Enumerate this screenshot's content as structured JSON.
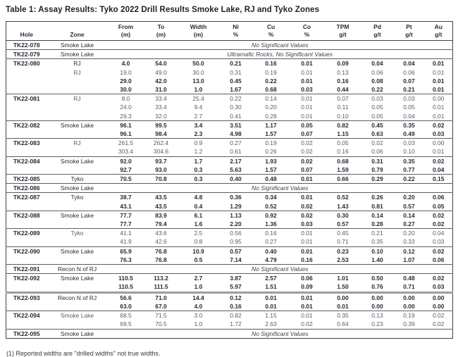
{
  "title": "Table 1: Assay Results: Tyko 2022 Drill Results Smoke Lake, RJ and Tyko Zones",
  "footnote": "(1) Reported widths are \"drilled widths\" not true widths.",
  "table": {
    "columns": [
      {
        "label": "Hole",
        "unit": ""
      },
      {
        "label": "Zone",
        "unit": ""
      },
      {
        "label": "From",
        "unit": "(m)"
      },
      {
        "label": "To",
        "unit": "(m)"
      },
      {
        "label": "Width",
        "unit": "(m)"
      },
      {
        "label": "Ni",
        "unit": "%"
      },
      {
        "label": "Cu",
        "unit": "%"
      },
      {
        "label": "Co",
        "unit": "%"
      },
      {
        "label": "TPM",
        "unit": "g/t"
      },
      {
        "label": "Pd",
        "unit": "g/t"
      },
      {
        "label": "Pt",
        "unit": "g/t"
      },
      {
        "label": "Au",
        "unit": "g/t"
      }
    ],
    "groups": [
      {
        "hole": "TK22-078",
        "zone": "Smoke Lake",
        "note": "No Significant Values"
      },
      {
        "hole": "TK22-079",
        "zone": "Smoke Lake",
        "note": "Ultramafic Rocks, No Significant Values"
      },
      {
        "hole": "TK22-080",
        "rows": [
          {
            "zone": "RJ",
            "values": [
              "4.0",
              "54.0",
              "50.0",
              "0.21",
              "0.16",
              "0.01",
              "0.09",
              "0.04",
              "0.04",
              "0.01"
            ],
            "bold": true
          },
          {
            "zone": "RJ",
            "values": [
              "19.0",
              "49.0",
              "30.0",
              "0.31",
              "0.19",
              "0.01",
              "0.13",
              "0.06",
              "0.06",
              "0.01"
            ],
            "bold": false
          },
          {
            "zone": "",
            "values": [
              "29.0",
              "42.0",
              "13.0",
              "0.45",
              "0.22",
              "0.01",
              "0.16",
              "0.08",
              "0.07",
              "0.01"
            ],
            "bold": true
          },
          {
            "zone": "",
            "values": [
              "30.0",
              "31.0",
              "1.0",
              "1.67",
              "0.68",
              "0.03",
              "0.44",
              "0.22",
              "0.21",
              "0.01"
            ],
            "bold": true
          }
        ]
      },
      {
        "hole": "TK22-081",
        "rows": [
          {
            "zone": "RJ",
            "values": [
              "8.0",
              "33.4",
              "25.4",
              "0.22",
              "0.14",
              "0.01",
              "0.07",
              "0.03",
              "0.03",
              "0.00"
            ],
            "bold": false
          },
          {
            "zone": "",
            "values": [
              "24.0",
              "33.4",
              "9.4",
              "0.30",
              "0.20",
              "0.01",
              "0.11",
              "0.05",
              "0.05",
              "0.01"
            ],
            "bold": false
          },
          {
            "zone": "",
            "values": [
              "29.3",
              "32.0",
              "2.7",
              "0.41",
              "0.28",
              "0.01",
              "0.10",
              "0.05",
              "0.04",
              "0.01"
            ],
            "bold": false
          }
        ]
      },
      {
        "hole": "TK22-082",
        "rows": [
          {
            "zone": "Smoke Lake",
            "values": [
              "96.1",
              "99.5",
              "3.4",
              "3.51",
              "1.17",
              "0.05",
              "0.82",
              "0.45",
              "0.35",
              "0.02"
            ],
            "bold": true
          },
          {
            "zone": "",
            "values": [
              "96.1",
              "98.4",
              "2.3",
              "4.98",
              "1.57",
              "0.07",
              "1.15",
              "0.63",
              "0.49",
              "0.03"
            ],
            "bold": true
          }
        ]
      },
      {
        "hole": "TK22-083",
        "rows": [
          {
            "zone": "RJ",
            "values": [
              "261.5",
              "262.4",
              "0.9",
              "0.27",
              "0.19",
              "0.02",
              "0.05",
              "0.02",
              "0.03",
              "0.00"
            ],
            "bold": false
          },
          {
            "zone": "",
            "values": [
              "303.4",
              "304.6",
              "1.2",
              "0.61",
              "0.26",
              "0.02",
              "0.16",
              "0.06",
              "0.10",
              "0.01"
            ],
            "bold": false
          }
        ]
      },
      {
        "hole": "TK22-084",
        "rows": [
          {
            "zone": "Smoke Lake",
            "values": [
              "92.0",
              "93.7",
              "1.7",
              "2.17",
              "1.93",
              "0.02",
              "0.68",
              "0.31",
              "0.35",
              "0.02"
            ],
            "bold": true
          },
          {
            "zone": "",
            "values": [
              "92.7",
              "93.0",
              "0.3",
              "5.63",
              "1.57",
              "0.07",
              "1.59",
              "0.79",
              "0.77",
              "0.04"
            ],
            "bold": true
          }
        ]
      },
      {
        "hole": "TK22-085",
        "rows": [
          {
            "zone": "Tyko",
            "values": [
              "70.5",
              "70.8",
              "0.3",
              "0.40",
              "0.48",
              "0.01",
              "0.66",
              "0.29",
              "0.22",
              "0.15"
            ],
            "bold": true
          }
        ]
      },
      {
        "hole": "TK22-086",
        "zone": "Smoke Lake",
        "note": "No Significant Values"
      },
      {
        "hole": "TK22-087",
        "rows": [
          {
            "zone": "Tyko",
            "values": [
              "38.7",
              "43.5",
              "4.8",
              "0.36",
              "0.34",
              "0.01",
              "0.52",
              "0.26",
              "0.20",
              "0.06"
            ],
            "bold": true
          },
          {
            "zone": "",
            "values": [
              "43.1",
              "43.5",
              "0.4",
              "1.29",
              "0.52",
              "0.02",
              "1.43",
              "0.81",
              "0.57",
              "0.05"
            ],
            "bold": true
          }
        ]
      },
      {
        "hole": "TK22-088",
        "rows": [
          {
            "zone": "Smoke Lake",
            "values": [
              "77.7",
              "83.9",
              "6.1",
              "1.13",
              "0.92",
              "0.02",
              "0.30",
              "0.14",
              "0.14",
              "0.02"
            ],
            "bold": true
          },
          {
            "zone": "",
            "values": [
              "77.7",
              "79.4",
              "1.6",
              "2.20",
              "1.36",
              "0.03",
              "0.57",
              "0.28",
              "0.27",
              "0.02"
            ],
            "bold": true
          }
        ]
      },
      {
        "hole": "TK22-089",
        "rows": [
          {
            "zone": "Tyko",
            "values": [
              "41.1",
              "43.6",
              "2.5",
              "0.56",
              "0.16",
              "0.01",
              "0.45",
              "0.21",
              "0.20",
              "0.04"
            ],
            "bold": false
          },
          {
            "zone": "",
            "values": [
              "41.9",
              "42.6",
              "0.8",
              "0.95",
              "0.27",
              "0.01",
              "0.71",
              "0.35",
              "0.33",
              "0.03"
            ],
            "bold": false
          }
        ]
      },
      {
        "hole": "TK22-090",
        "rows": [
          {
            "zone": "Smoke Lake",
            "values": [
              "65.9",
              "76.8",
              "10.9",
              "0.57",
              "0.40",
              "0.01",
              "0.23",
              "0.10",
              "0.12",
              "0.02"
            ],
            "bold": true
          },
          {
            "zone": "",
            "values": [
              "76.3",
              "76.8",
              "0.5",
              "7.14",
              "4.79",
              "0.16",
              "2.53",
              "1.40",
              "1.07",
              "0.06"
            ],
            "bold": true
          }
        ]
      },
      {
        "hole": "TK22-091",
        "zone": "Recon N of RJ",
        "note": "No Significant Values"
      },
      {
        "hole": "TK22-092",
        "rows": [
          {
            "zone": "Smoke Lake",
            "values": [
              "110.5",
              "113.2",
              "2.7",
              "3.87",
              "2.57",
              "0.06",
              "1.01",
              "0.50",
              "0.48",
              "0.02"
            ],
            "bold": true
          },
          {
            "zone": "",
            "values": [
              "110.5",
              "111.5",
              "1.0",
              "5.97",
              "1.51",
              "0.09",
              "1.50",
              "0.76",
              "0.71",
              "0.03"
            ],
            "bold": true
          }
        ]
      },
      {
        "hole": "TK22-093",
        "heavy": true,
        "rows": [
          {
            "zone": "Recon N of RJ",
            "values": [
              "56.6",
              "71.0",
              "14.4",
              "0.12",
              "0.01",
              "0.01",
              "0.00",
              "0.00",
              "0.00",
              "0.00"
            ],
            "bold": true
          },
          {
            "zone": "",
            "values": [
              "63.0",
              "67.0",
              "4.0",
              "0.16",
              "0.01",
              "0.01",
              "0.01",
              "0.00",
              "0.00",
              "0.00"
            ],
            "bold": true
          }
        ]
      },
      {
        "hole": "TK22-094",
        "rows": [
          {
            "zone": "Smoke Lake",
            "values": [
              "68.5",
              "71.5",
              "3.0",
              "0.82",
              "1.15",
              "0.01",
              "0.35",
              "0.13",
              "0.19",
              "0.02"
            ],
            "bold": false
          },
          {
            "zone": "",
            "values": [
              "69.5",
              "70.5",
              "1.0",
              "1.72",
              "2.63",
              "0.02",
              "0.64",
              "0.23",
              "0.39",
              "0.02"
            ],
            "bold": false
          }
        ]
      },
      {
        "hole": "TK22-095",
        "zone": "Smoke Lake",
        "note": "No Significant Values"
      }
    ]
  }
}
